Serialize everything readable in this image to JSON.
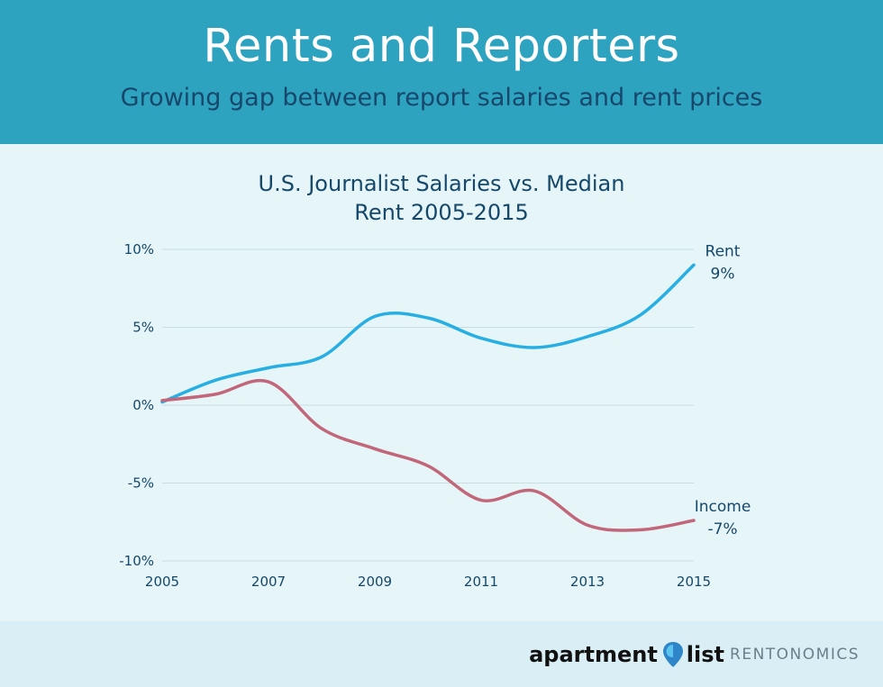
{
  "header": {
    "title": "Rents and Reporters",
    "subtitle": "Growing gap between report salaries and rent prices"
  },
  "chart_data": {
    "type": "line",
    "title_lines": [
      "U.S. Journalist Salaries vs. Median",
      "Rent 2005-2015"
    ],
    "x": [
      2005,
      2006,
      2007,
      2008,
      2009,
      2010,
      2011,
      2012,
      2013,
      2014,
      2015
    ],
    "x_ticks": [
      "2005",
      "2007",
      "2009",
      "2011",
      "2013",
      "2015"
    ],
    "y_ticks": [
      "10%",
      "5%",
      "0%",
      "-5%",
      "-10%"
    ],
    "ylim": [
      -10,
      10
    ],
    "xlim": [
      2005,
      2015
    ],
    "grid": true,
    "series": [
      {
        "name": "Rent",
        "end_label": "9%",
        "color": "#27aee3",
        "values": [
          0.2,
          1.6,
          2.4,
          3.1,
          5.7,
          5.6,
          4.3,
          3.7,
          4.4,
          5.8,
          9.0
        ]
      },
      {
        "name": "Income",
        "end_label": "-7%",
        "color": "#c2667a",
        "values": [
          0.3,
          0.7,
          1.5,
          -1.5,
          -2.8,
          -3.9,
          -6.1,
          -5.5,
          -7.7,
          -8.0,
          -7.4
        ]
      }
    ]
  },
  "footer": {
    "brand_part1": "apartment",
    "brand_part2": "list",
    "brand_tag": "RENTONOMICS"
  },
  "icons": {
    "brand_pin": "location-pin-icon"
  }
}
